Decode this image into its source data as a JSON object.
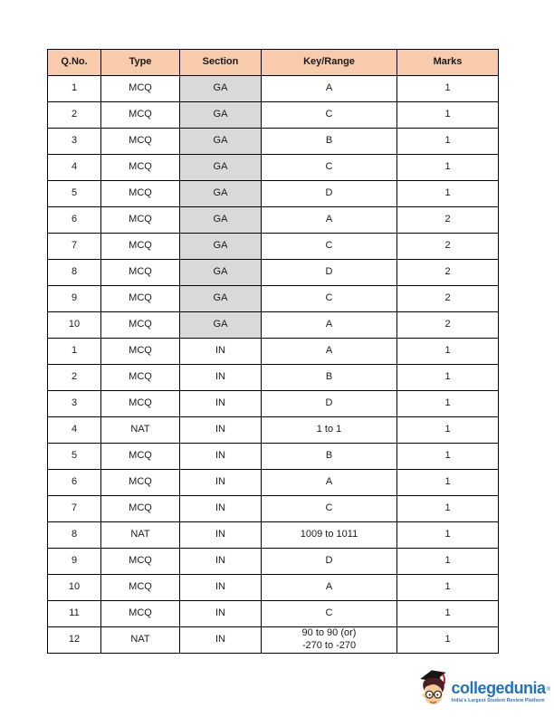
{
  "table": {
    "columns": [
      {
        "id": "qno",
        "label": "Q.No."
      },
      {
        "id": "type",
        "label": "Type"
      },
      {
        "id": "section",
        "label": "Section"
      },
      {
        "id": "key",
        "label": "Key/Range"
      },
      {
        "id": "marks",
        "label": "Marks"
      }
    ],
    "rows": [
      {
        "qno": "1",
        "type": "MCQ",
        "section": "GA",
        "key": "A",
        "marks": "1"
      },
      {
        "qno": "2",
        "type": "MCQ",
        "section": "GA",
        "key": "C",
        "marks": "1"
      },
      {
        "qno": "3",
        "type": "MCQ",
        "section": "GA",
        "key": "B",
        "marks": "1"
      },
      {
        "qno": "4",
        "type": "MCQ",
        "section": "GA",
        "key": "C",
        "marks": "1"
      },
      {
        "qno": "5",
        "type": "MCQ",
        "section": "GA",
        "key": "D",
        "marks": "1"
      },
      {
        "qno": "6",
        "type": "MCQ",
        "section": "GA",
        "key": "A",
        "marks": "2"
      },
      {
        "qno": "7",
        "type": "MCQ",
        "section": "GA",
        "key": "C",
        "marks": "2"
      },
      {
        "qno": "8",
        "type": "MCQ",
        "section": "GA",
        "key": "D",
        "marks": "2"
      },
      {
        "qno": "9",
        "type": "MCQ",
        "section": "GA",
        "key": "C",
        "marks": "2"
      },
      {
        "qno": "10",
        "type": "MCQ",
        "section": "GA",
        "key": "A",
        "marks": "2"
      },
      {
        "qno": "1",
        "type": "MCQ",
        "section": "IN",
        "key": "A",
        "marks": "1"
      },
      {
        "qno": "2",
        "type": "MCQ",
        "section": "IN",
        "key": "B",
        "marks": "1"
      },
      {
        "qno": "3",
        "type": "MCQ",
        "section": "IN",
        "key": "D",
        "marks": "1"
      },
      {
        "qno": "4",
        "type": "NAT",
        "section": "IN",
        "key": "1 to 1",
        "marks": "1"
      },
      {
        "qno": "5",
        "type": "MCQ",
        "section": "IN",
        "key": "B",
        "marks": "1"
      },
      {
        "qno": "6",
        "type": "MCQ",
        "section": "IN",
        "key": "A",
        "marks": "1"
      },
      {
        "qno": "7",
        "type": "MCQ",
        "section": "IN",
        "key": "C",
        "marks": "1"
      },
      {
        "qno": "8",
        "type": "NAT",
        "section": "IN",
        "key": "1009 to 1011",
        "marks": "1"
      },
      {
        "qno": "9",
        "type": "MCQ",
        "section": "IN",
        "key": "D",
        "marks": "1"
      },
      {
        "qno": "10",
        "type": "MCQ",
        "section": "IN",
        "key": "A",
        "marks": "1"
      },
      {
        "qno": "11",
        "type": "MCQ",
        "section": "IN",
        "key": "C",
        "marks": "1"
      },
      {
        "qno": "12",
        "type": "NAT",
        "section": "IN",
        "key": [
          "90 to 90 (or)",
          "-270 to -270"
        ],
        "marks": "1"
      }
    ]
  },
  "logo": {
    "brand": "collegedunia",
    "brand_mark": "®",
    "tagline": "India's Largest Student Review Platform"
  },
  "colors": {
    "header_bg": "#f8cbad",
    "shaded_bg": "#d9d9d9",
    "border": "#000000",
    "text": "#1a1a1a",
    "brand_blue": "#2273b9"
  }
}
